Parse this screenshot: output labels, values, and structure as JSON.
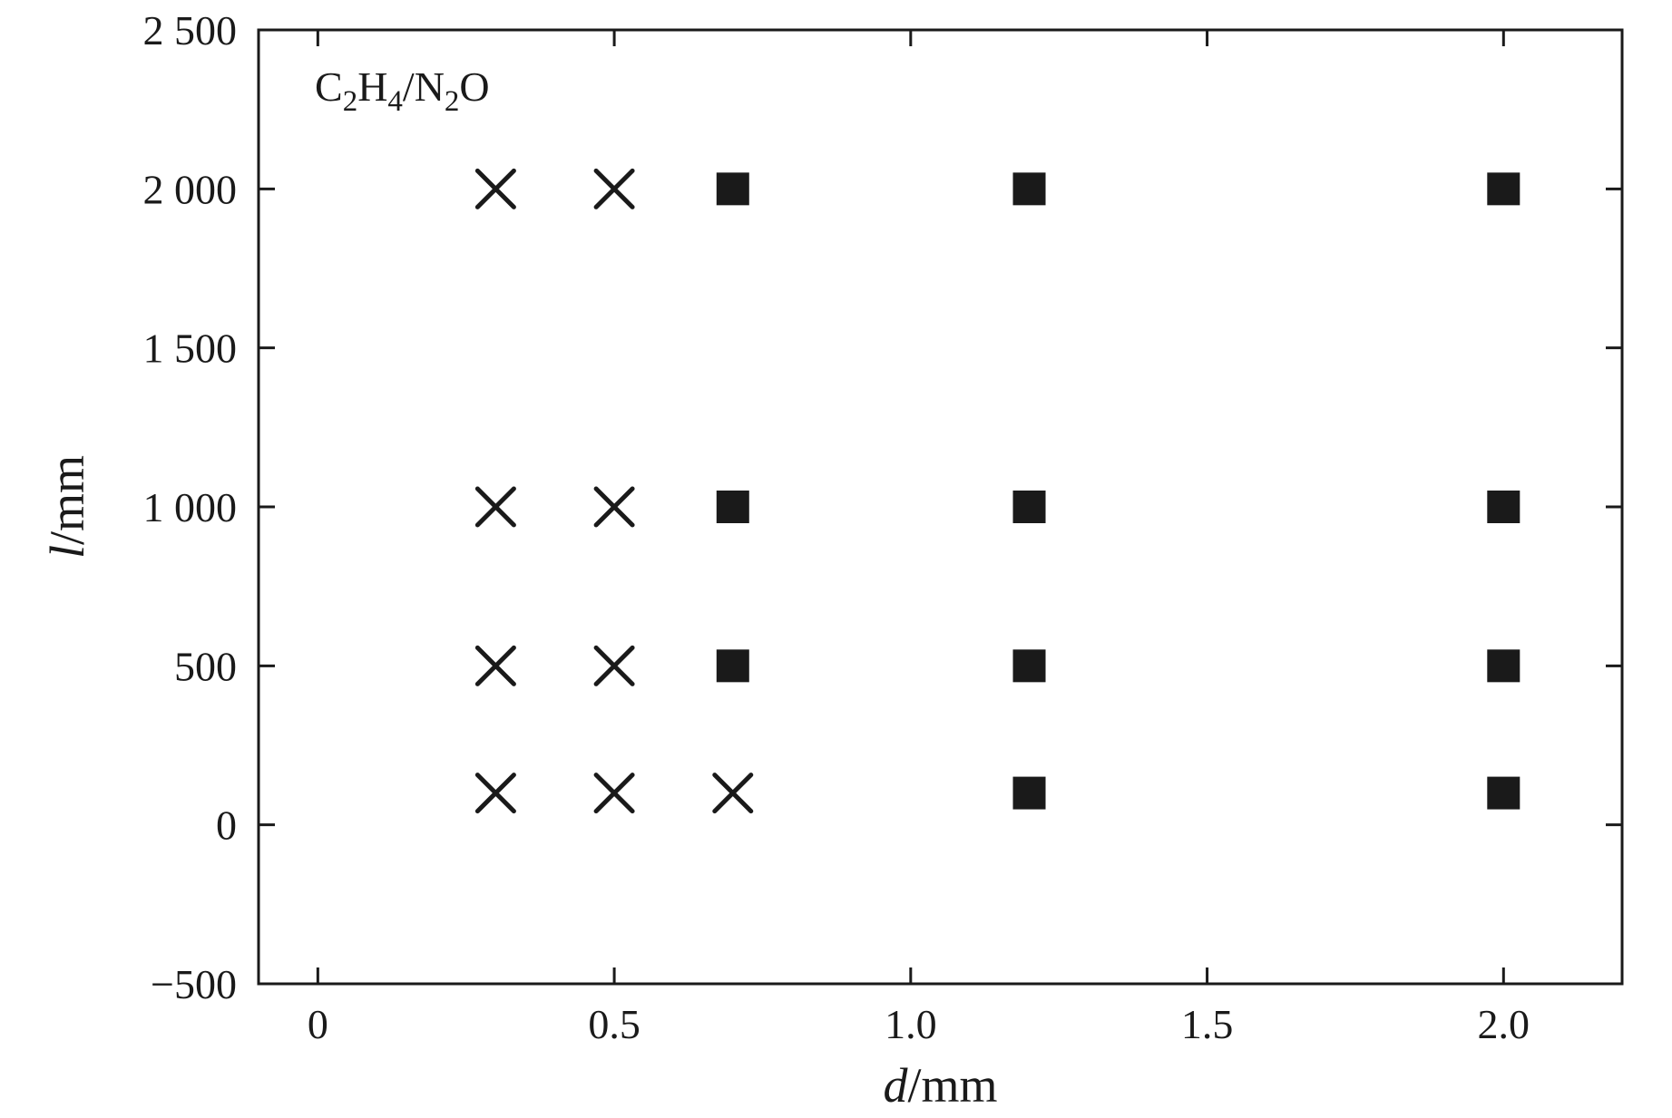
{
  "chart_data": {
    "type": "scatter",
    "title": "",
    "annotation": {
      "text": "C2H4/N2O",
      "parts": [
        {
          "text": "C",
          "sub": false
        },
        {
          "text": "2",
          "sub": true
        },
        {
          "text": "H",
          "sub": false
        },
        {
          "text": "4",
          "sub": true
        },
        {
          "text": "/N",
          "sub": false
        },
        {
          "text": "2",
          "sub": true
        },
        {
          "text": "O",
          "sub": false
        }
      ]
    },
    "xlabel": {
      "variable": "d",
      "unit": "/mm"
    },
    "ylabel": {
      "variable": "l",
      "unit": "/mm"
    },
    "xlim": [
      -0.1,
      2.2
    ],
    "ylim": [
      -500,
      2500
    ],
    "grid": false,
    "legend": "none",
    "x_ticks": [
      {
        "value": 0,
        "label": "0"
      },
      {
        "value": 0.5,
        "label": "0.5"
      },
      {
        "value": 1.0,
        "label": "1.0"
      },
      {
        "value": 1.5,
        "label": "1.5"
      },
      {
        "value": 2.0,
        "label": "2.0"
      }
    ],
    "y_ticks": [
      {
        "value": 2500,
        "label": "2 500"
      },
      {
        "value": 2000,
        "label": "2 000"
      },
      {
        "value": 1500,
        "label": "1 500"
      },
      {
        "value": 1000,
        "label": "1 000"
      },
      {
        "value": 500,
        "label": "500"
      },
      {
        "value": 0,
        "label": "0"
      },
      {
        "value": -500,
        "label": "−500"
      }
    ],
    "series": [
      {
        "name": "cross-markers",
        "marker": "x",
        "color": "#1a1a1a",
        "points": [
          [
            0.3,
            2000
          ],
          [
            0.5,
            2000
          ],
          [
            0.3,
            1000
          ],
          [
            0.5,
            1000
          ],
          [
            0.3,
            500
          ],
          [
            0.5,
            500
          ],
          [
            0.3,
            100
          ],
          [
            0.5,
            100
          ],
          [
            0.7,
            100
          ]
        ]
      },
      {
        "name": "square-markers",
        "marker": "square",
        "color": "#1a1a1a",
        "points": [
          [
            0.7,
            2000
          ],
          [
            1.2,
            2000
          ],
          [
            2.0,
            2000
          ],
          [
            0.7,
            1000
          ],
          [
            1.2,
            1000
          ],
          [
            2.0,
            1000
          ],
          [
            0.7,
            500
          ],
          [
            1.2,
            500
          ],
          [
            2.0,
            500
          ],
          [
            1.2,
            100
          ],
          [
            2.0,
            100
          ]
        ]
      }
    ]
  }
}
